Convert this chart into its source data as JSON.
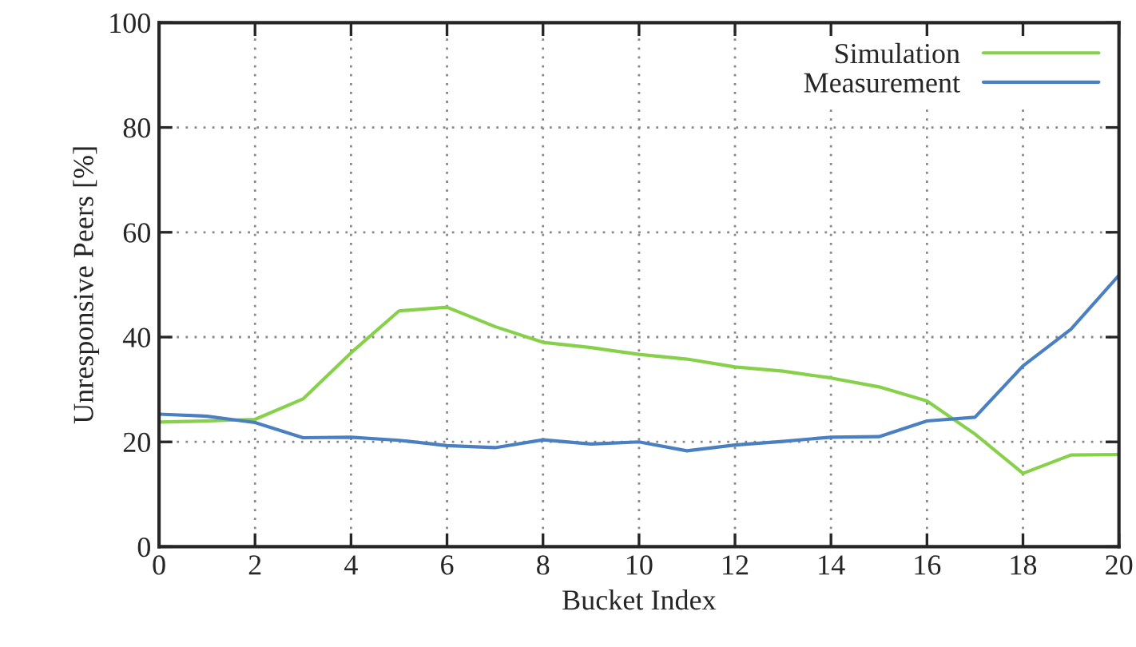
{
  "chart_data": {
    "type": "line",
    "xlabel": "Bucket Index",
    "ylabel": "Unresponsive Peers [%]",
    "x": [
      0,
      1,
      2,
      3,
      4,
      5,
      6,
      7,
      8,
      9,
      10,
      11,
      12,
      13,
      14,
      15,
      16,
      17,
      18,
      19,
      20
    ],
    "series": [
      {
        "name": "Simulation",
        "color": "#86d04a",
        "values": [
          23.8,
          24,
          24.3,
          28.2,
          37,
          45,
          45.7,
          42,
          39,
          38,
          36.7,
          35.8,
          34.3,
          33.5,
          32.2,
          30.5,
          27.8,
          21.5,
          14,
          17.5,
          17.6
        ]
      },
      {
        "name": "Measurement",
        "color": "#4a7fc1",
        "values": [
          25.3,
          24.9,
          23.7,
          20.8,
          20.9,
          20.3,
          19.3,
          18.9,
          20.4,
          19.6,
          20,
          18.3,
          19.4,
          20.1,
          20.9,
          21,
          24,
          24.7,
          34.5,
          41.5,
          51.8
        ]
      }
    ],
    "xlim": [
      0,
      20
    ],
    "xticks": [
      0,
      2,
      4,
      6,
      8,
      10,
      12,
      14,
      16,
      18,
      20
    ],
    "ylim": [
      0,
      100
    ],
    "yticks": [
      0,
      20,
      40,
      60,
      80,
      100
    ],
    "grid": true,
    "legend": "top right",
    "marker": "none",
    "line_style": "solid"
  }
}
